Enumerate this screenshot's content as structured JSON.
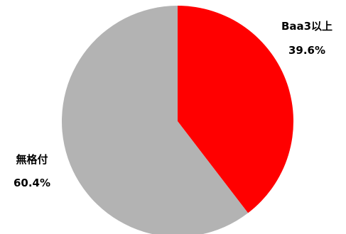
{
  "chart_data": {
    "type": "pie",
    "slices": [
      {
        "label": "Baa3以上",
        "value": 39.6,
        "display": "39.6%",
        "color": "#ff0000"
      },
      {
        "label": "無格付",
        "value": 60.4,
        "display": "60.4%",
        "color": "#b3b3b3"
      }
    ],
    "start_angle_deg": 0,
    "direction": "clockwise",
    "legend": "none"
  }
}
